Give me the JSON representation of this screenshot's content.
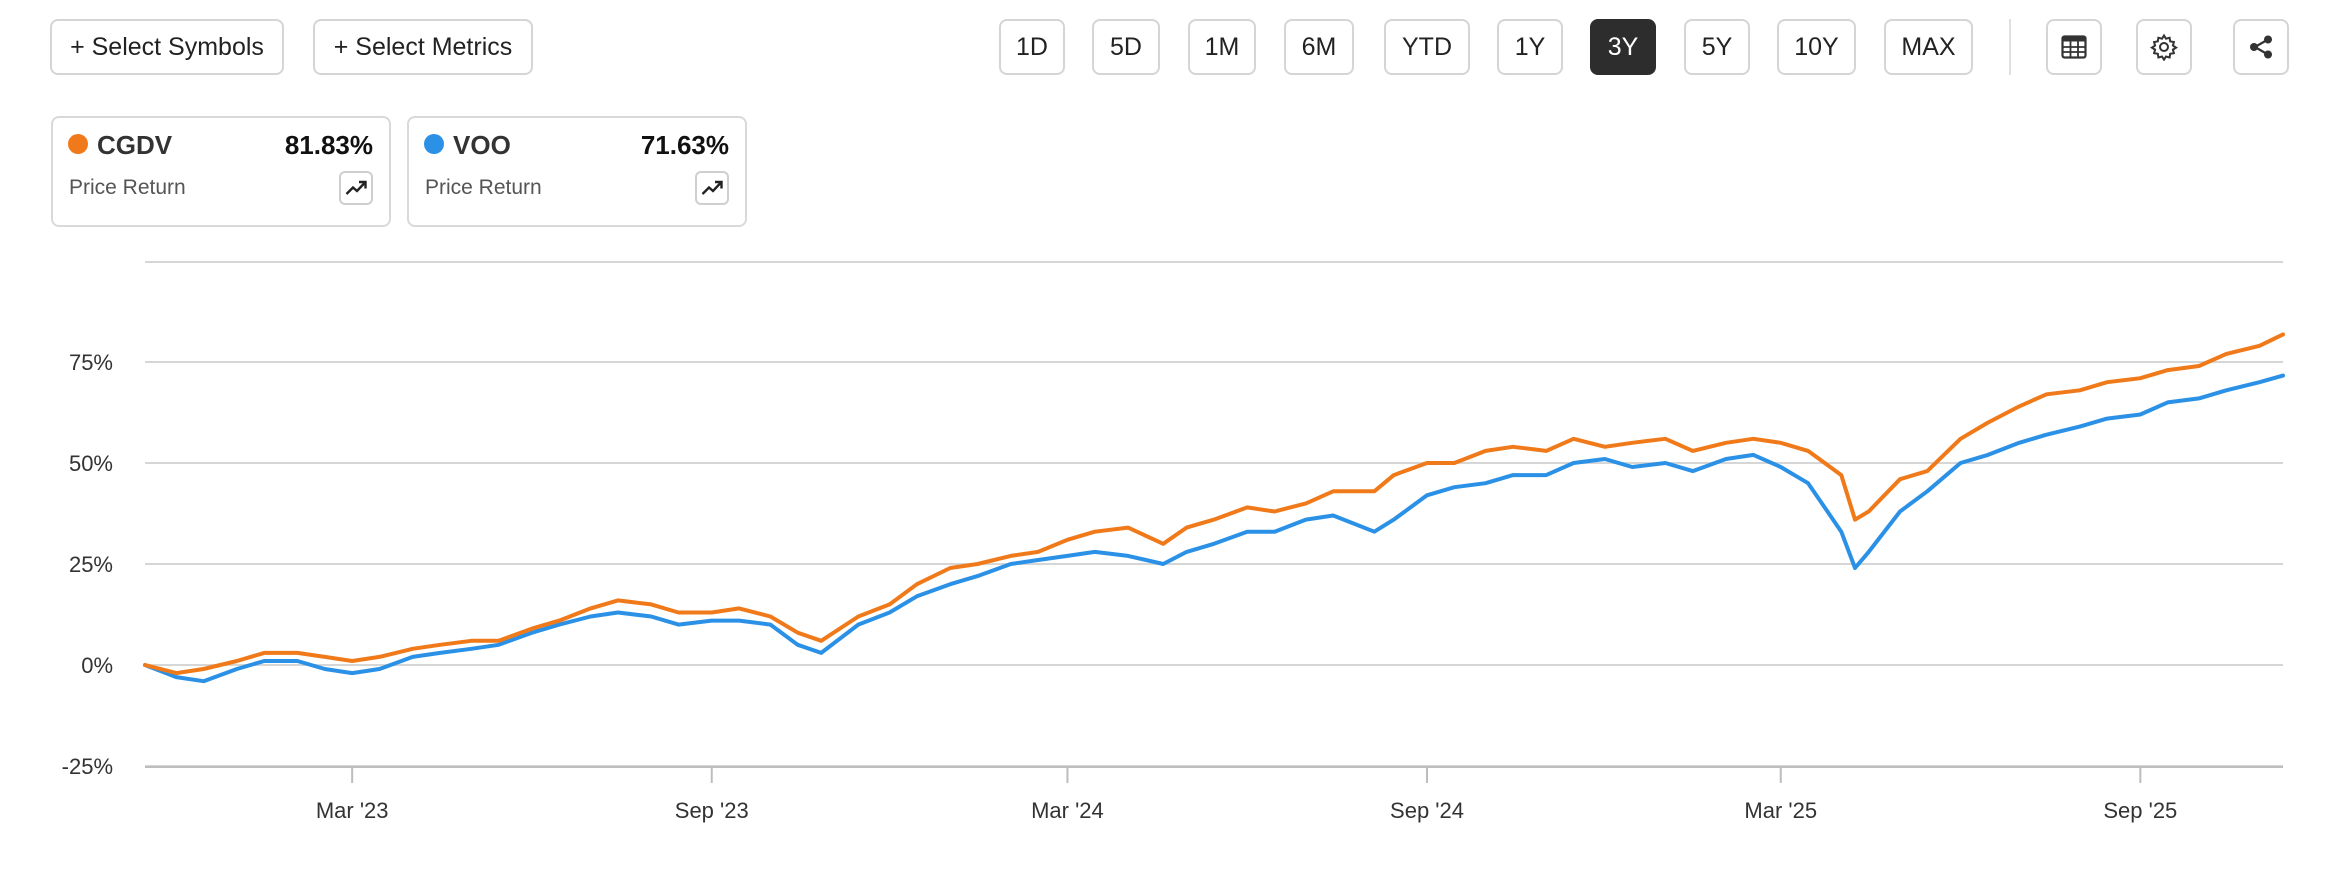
{
  "toolbar": {
    "select_symbols": "+ Select Symbols",
    "select_metrics": "+ Select Metrics",
    "ranges": [
      "1D",
      "5D",
      "1M",
      "6M",
      "YTD",
      "1Y",
      "3Y",
      "5Y",
      "10Y",
      "MAX"
    ],
    "active_range": "3Y",
    "icons": [
      "table-icon",
      "gear-icon",
      "share-icon"
    ]
  },
  "legend_cards": [
    {
      "symbol": "CGDV",
      "value": "81.83%",
      "metric": "Price Return",
      "color": "#f07a1a"
    },
    {
      "symbol": "VOO",
      "value": "71.63%",
      "metric": "Price Return",
      "color": "#2b91e6"
    }
  ],
  "chart_data": {
    "type": "line",
    "yunit": "%",
    "ylim": [
      -30,
      100
    ],
    "yticks": [
      -25,
      0,
      25,
      50,
      75
    ],
    "ytick_labels": [
      "-25%",
      "0%",
      "25%",
      "50%",
      "75%"
    ],
    "xlim": [
      "2022-11-15",
      "2025-11-13"
    ],
    "xticks": [
      "2023-03-01",
      "2023-09-01",
      "2024-03-01",
      "2024-09-01",
      "2025-03-01",
      "2025-09-01"
    ],
    "xtick_labels": [
      "Mar '23",
      "Sep '23",
      "Mar '24",
      "Sep '24",
      "Mar '25",
      "Sep '25"
    ],
    "grid": true,
    "x": [
      "2022-11-15",
      "2022-12-01",
      "2022-12-15",
      "2023-01-01",
      "2023-01-15",
      "2023-02-01",
      "2023-02-15",
      "2023-03-01",
      "2023-03-15",
      "2023-04-01",
      "2023-04-15",
      "2023-05-01",
      "2023-05-15",
      "2023-06-01",
      "2023-06-15",
      "2023-07-01",
      "2023-07-15",
      "2023-08-01",
      "2023-08-15",
      "2023-09-01",
      "2023-09-15",
      "2023-10-01",
      "2023-10-15",
      "2023-10-27",
      "2023-11-15",
      "2023-12-01",
      "2023-12-15",
      "2024-01-01",
      "2024-01-15",
      "2024-02-01",
      "2024-02-15",
      "2024-03-01",
      "2024-03-15",
      "2024-04-01",
      "2024-04-19",
      "2024-05-01",
      "2024-05-15",
      "2024-06-01",
      "2024-06-15",
      "2024-07-01",
      "2024-07-15",
      "2024-08-05",
      "2024-08-15",
      "2024-09-01",
      "2024-09-15",
      "2024-10-01",
      "2024-10-15",
      "2024-11-01",
      "2024-11-15",
      "2024-12-01",
      "2024-12-15",
      "2025-01-01",
      "2025-01-15",
      "2025-02-01",
      "2025-02-15",
      "2025-03-01",
      "2025-03-15",
      "2025-04-01",
      "2025-04-08",
      "2025-04-15",
      "2025-05-01",
      "2025-05-15",
      "2025-06-01",
      "2025-06-15",
      "2025-07-01",
      "2025-07-15",
      "2025-08-01",
      "2025-08-15",
      "2025-09-01",
      "2025-09-15",
      "2025-10-01",
      "2025-10-15",
      "2025-11-01",
      "2025-11-13"
    ],
    "series": [
      {
        "name": "CGDV",
        "color": "#f07a1a",
        "values": [
          0,
          -2,
          -1,
          1,
          3,
          3,
          2,
          1,
          2,
          4,
          5,
          6,
          6,
          9,
          11,
          14,
          16,
          15,
          13,
          13,
          14,
          12,
          8,
          6,
          12,
          15,
          20,
          24,
          25,
          27,
          28,
          31,
          33,
          34,
          30,
          34,
          36,
          39,
          38,
          40,
          43,
          43,
          47,
          50,
          50,
          53,
          54,
          53,
          56,
          54,
          55,
          56,
          53,
          55,
          56,
          55,
          53,
          47,
          36,
          38,
          46,
          48,
          56,
          60,
          64,
          67,
          68,
          70,
          71,
          73,
          74,
          77,
          79,
          81.83
        ]
      },
      {
        "name": "VOO",
        "color": "#2b91e6",
        "values": [
          0,
          -3,
          -4,
          -1,
          1,
          1,
          -1,
          -2,
          -1,
          2,
          3,
          4,
          5,
          8,
          10,
          12,
          13,
          12,
          10,
          11,
          11,
          10,
          5,
          3,
          10,
          13,
          17,
          20,
          22,
          25,
          26,
          27,
          28,
          27,
          25,
          28,
          30,
          33,
          33,
          36,
          37,
          33,
          36,
          42,
          44,
          45,
          47,
          47,
          50,
          51,
          49,
          50,
          48,
          51,
          52,
          49,
          45,
          33,
          24,
          28,
          38,
          43,
          50,
          52,
          55,
          57,
          59,
          61,
          62,
          65,
          66,
          68,
          70,
          71.63
        ]
      }
    ]
  }
}
